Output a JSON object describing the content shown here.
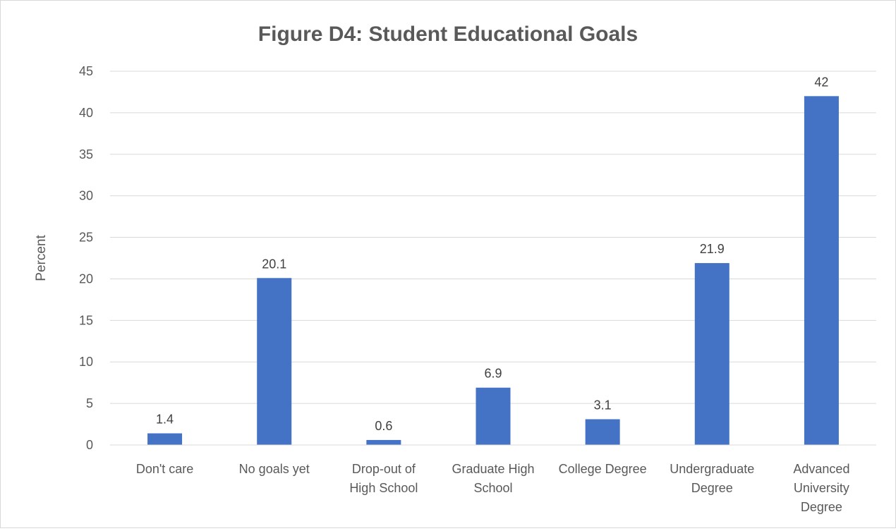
{
  "chart_data": {
    "type": "bar",
    "title": "Figure D4: Student Educational Goals",
    "xlabel": "",
    "ylabel": "Percent",
    "categories": [
      [
        "Don't care"
      ],
      [
        "No goals yet"
      ],
      [
        "Drop-out of",
        "High School"
      ],
      [
        "Graduate High",
        "School"
      ],
      [
        "College Degree"
      ],
      [
        "Undergraduate",
        "Degree"
      ],
      [
        "Advanced",
        "University",
        "Degree"
      ]
    ],
    "values": [
      1.4,
      20.1,
      0.6,
      6.9,
      3.1,
      21.9,
      42
    ],
    "data_labels": [
      "1.4",
      "20.1",
      "0.6",
      "6.9",
      "3.1",
      "21.9",
      "42"
    ],
    "ylim": [
      0,
      45
    ],
    "yticks": [
      0,
      5,
      10,
      15,
      20,
      25,
      30,
      35,
      40,
      45
    ],
    "grid": true,
    "legend": "none",
    "bar_color": "#4472C4",
    "grid_color": "#d9d9d9"
  }
}
